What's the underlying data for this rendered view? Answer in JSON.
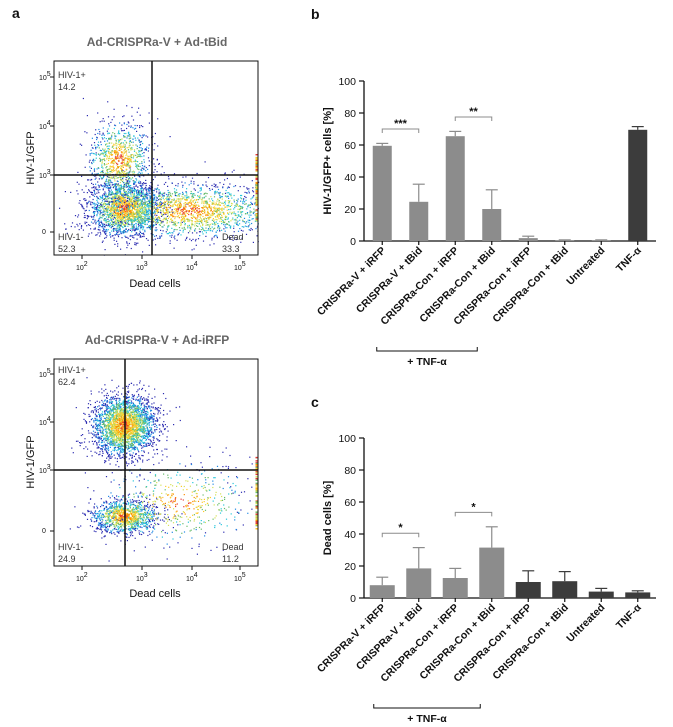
{
  "panel_labels": {
    "a": "a",
    "b": "b",
    "c": "c"
  },
  "colors": {
    "bar_gray": "#8c8c8c",
    "bar_dark": "#3c3c3c",
    "axis": "#111111"
  },
  "flow_density_palette": [
    "#2b2bb0",
    "#1e88e5",
    "#26c6da",
    "#66bb6a",
    "#d4e157",
    "#ffca28",
    "#fb8c00",
    "#e53935"
  ],
  "chart_data": [
    {
      "id": "flow-top",
      "type": "scatter",
      "title": "Ad-CRISPRa-V + Ad-tBid",
      "xlabel": "Dead cells",
      "ylabel": "HIV-1/GFP",
      "x_ticks": [
        "10",
        "10",
        "10",
        "10"
      ],
      "x_tick_exponents": [
        "2",
        "3",
        "4",
        "5"
      ],
      "y_ticks": [
        "0",
        "10",
        "10",
        "10"
      ],
      "y_tick_exponents": [
        "",
        "3",
        "4",
        "5"
      ],
      "gates": {
        "hiv_pos": {
          "label": "HIV-1+",
          "value": "14.2"
        },
        "hiv_neg": {
          "label": "HIV-1-",
          "value": "52.3"
        },
        "dead": {
          "label": "Dead",
          "value": "33.3"
        }
      },
      "populations": [
        {
          "cx": 2.5,
          "cy": 1.9,
          "sx": 0.38,
          "sy": 0.32,
          "n": 1900
        },
        {
          "cx": 2.4,
          "cy": 3.05,
          "sx": 0.33,
          "sy": 0.45,
          "n": 900
        },
        {
          "cx": 3.9,
          "cy": 1.85,
          "sx": 0.95,
          "sy": 0.32,
          "n": 1700
        }
      ]
    },
    {
      "id": "flow-bottom",
      "type": "scatter",
      "title": "Ad-CRISPRa-V + Ad-iRFP",
      "xlabel": "Dead cells",
      "ylabel": "HIV-1/GFP",
      "x_ticks": [
        "10",
        "10",
        "10",
        "10"
      ],
      "x_tick_exponents": [
        "2",
        "3",
        "4",
        "5"
      ],
      "y_ticks": [
        "0",
        "10",
        "10",
        "10"
      ],
      "y_tick_exponents": [
        "",
        "3",
        "4",
        "5"
      ],
      "gates": {
        "hiv_pos": {
          "label": "HIV-1+",
          "value": "62.4"
        },
        "hiv_neg": {
          "label": "HIV-1-",
          "value": "24.9"
        },
        "dead": {
          "label": "Dead",
          "value": "11.2"
        }
      },
      "populations": [
        {
          "cx": 2.5,
          "cy": 3.9,
          "sx": 0.34,
          "sy": 0.33,
          "n": 2600
        },
        {
          "cx": 2.5,
          "cy": 1.9,
          "sx": 0.35,
          "sy": 0.18,
          "n": 1100
        },
        {
          "cx": 3.7,
          "cy": 2.2,
          "sx": 0.8,
          "sy": 0.45,
          "n": 500
        }
      ]
    },
    {
      "id": "bar-b",
      "type": "bar",
      "ylabel": "HIV-1/GFP+ cells [%]",
      "ylim": [
        0,
        100
      ],
      "yticks": [
        0,
        20,
        40,
        60,
        80,
        100
      ],
      "categories": [
        "CRISPRa-V + iRFP",
        "CRISPRa-V + tBid",
        "CRISPRa-Con + iRFP",
        "CRISPRa-Con + tBid",
        "CRISPRa-Con + iRFP",
        "CRISPRa-Con + tBid",
        "Untreated",
        "TNF-α"
      ],
      "values": [
        59.5,
        24.5,
        65.5,
        20,
        1.8,
        0.5,
        0.5,
        69.5
      ],
      "errors": [
        1.5,
        11,
        3,
        12,
        1.2,
        0.2,
        0.2,
        2
      ],
      "bar_colors": [
        "gray",
        "gray",
        "gray",
        "gray",
        "gray",
        "gray",
        "gray",
        "dark"
      ],
      "significance": [
        {
          "from": 0,
          "to": 1,
          "label": "***"
        },
        {
          "from": 2,
          "to": 3,
          "label": "**"
        }
      ],
      "group_label": {
        "from": 0,
        "to": 3,
        "label": "+ TNF-α"
      }
    },
    {
      "id": "bar-c",
      "type": "bar",
      "ylabel": "Dead cells [%]",
      "ylim": [
        0,
        100
      ],
      "yticks": [
        0,
        20,
        40,
        60,
        80,
        100
      ],
      "categories": [
        "CRISPRa-V + iRFP",
        "CRISPRa-V + tBid",
        "CRISPRa-Con + iRFP",
        "CRISPRa-Con + tBid",
        "CRISPRa-Con + iRFP",
        "CRISPRa-Con + tBid",
        "Untreated",
        "TNF-α"
      ],
      "values": [
        8,
        18.5,
        12.5,
        31.5,
        10,
        10.5,
        4,
        3.5
      ],
      "errors": [
        5,
        13,
        6,
        13,
        7,
        6,
        2,
        1
      ],
      "bar_colors": [
        "gray",
        "gray",
        "gray",
        "gray",
        "dark",
        "dark",
        "dark",
        "dark"
      ],
      "significance": [
        {
          "from": 0,
          "to": 1,
          "label": "*"
        },
        {
          "from": 2,
          "to": 3,
          "label": "*"
        }
      ],
      "group_label": {
        "from": 0,
        "to": 3,
        "label": "+ TNF-α"
      }
    }
  ]
}
